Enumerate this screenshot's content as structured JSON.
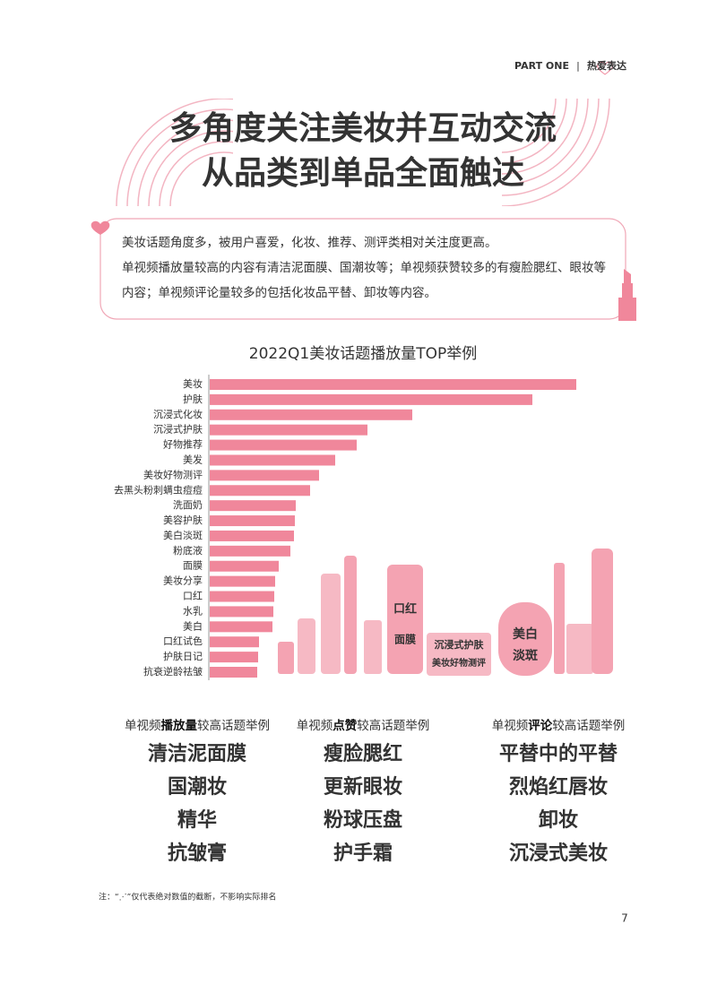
{
  "header": {
    "part": "PART ONE",
    "separator": "|",
    "section": "热爱表达"
  },
  "title": {
    "lines": [
      "多角度关注美妆并互动交流",
      "从品类到单品全面触达"
    ]
  },
  "intro": {
    "lines": [
      "美妆话题角度多，被用户喜爱，化妆、推荐、测评类相对关注度更高。",
      "单视频播放量较高的内容有清洁泥面膜、国潮妆等；单视频获赞较多的有瘦脸腮红、眼妆等",
      "内容；单视频评论量较多的包括化妆品平替、卸妆等内容。"
    ]
  },
  "chart_data": {
    "type": "bar",
    "orientation": "horizontal",
    "title": "2022Q1美妆话题播放量TOP举例",
    "categories": [
      "美妆",
      "护肤",
      "沉浸式化妆",
      "沉浸式护肤",
      "好物推荐",
      "美发",
      "美妆好物测评",
      "去黑头粉刺螨虫痘痘",
      "洗面奶",
      "美容护肤",
      "美白淡斑",
      "粉底液",
      "面膜",
      "美妆分享",
      "口红",
      "水乳",
      "美白",
      "口红试色",
      "护肤日记",
      "抗衰逆龄祛皱"
    ],
    "values": [
      409,
      360,
      226,
      176,
      164,
      140,
      122,
      112,
      96,
      95,
      94,
      90,
      77,
      73,
      72,
      71,
      70,
      55,
      54,
      53
    ],
    "color": "#f0879b"
  },
  "wordcloud": [
    "口红",
    "面膜",
    "沉浸式护肤",
    "美妆好物测评",
    "美白",
    "淡斑"
  ],
  "columns": [
    {
      "heading": {
        "before": "单视频",
        "emphasis": "播放量",
        "after": "较高话题举例"
      },
      "items": [
        "清洁泥面膜",
        "国潮妆",
        "精华",
        "抗皱膏"
      ]
    },
    {
      "heading": {
        "before": "单视频",
        "emphasis": "点赞",
        "after": "较高话题举例"
      },
      "items": [
        "瘦脸腮红",
        "更新眼妆",
        "粉球压盘",
        "护手霜"
      ]
    },
    {
      "heading": {
        "before": "单视频",
        "emphasis": "评论",
        "after": "较高话题举例"
      },
      "items": [
        "平替中的平替",
        "烈焰红唇妆",
        "卸妆",
        "沉浸式美妆"
      ]
    }
  ],
  "note": "注：“⋰”仅代表绝对数值的截断，不影响实际排名",
  "page_number": "7"
}
